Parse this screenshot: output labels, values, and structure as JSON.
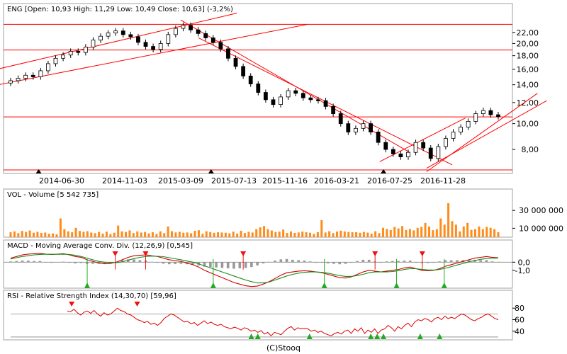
{
  "footer": "(C)Stooq",
  "colors": {
    "up": "#ffffff",
    "down": "#000000",
    "trend": "#ff0000",
    "volume": "#ff8c1a",
    "macd": "#d00000",
    "signal": "#1a8c1a",
    "histogram": "#999999",
    "rsi": "#e00000",
    "marker_green": "#22aa22",
    "marker_red": "#ee1111"
  },
  "chart_data": [
    {
      "type": "candlestick",
      "header": "ENG [Open: 10,93  High: 11,29  Low: 10,49  Close: 10,63] (-3,2%)",
      "x_tick_labels": [
        "2014-06-30",
        "2014-11-03",
        "2015-03-09",
        "2015-07-13",
        "2015-11-16",
        "2016-03-21",
        "2016-07-25",
        "2016-11-28"
      ],
      "y_tick_labels": [
        "22,00",
        "20,00",
        "18,00",
        "16,00",
        "14,00",
        "12,00",
        "10,00",
        "8,00"
      ],
      "y_ticks": [
        22,
        20,
        18,
        16,
        14,
        12,
        10,
        8
      ],
      "y_scale": "log",
      "ylim": [
        6.5,
        25
      ],
      "horizontal_lines": [
        23.6,
        18.9,
        10.6,
        6.7
      ],
      "close_series": [
        14.5,
        14.8,
        15.2,
        15.0,
        15.8,
        16.8,
        17.6,
        18.1,
        18.7,
        18.5,
        19.4,
        20.6,
        21.3,
        21.9,
        22.3,
        21.6,
        21.2,
        20.2,
        19.5,
        19.0,
        20.0,
        21.6,
        22.8,
        23.4,
        22.5,
        21.8,
        21.0,
        20.2,
        19.1,
        17.6,
        16.4,
        15.1,
        14.1,
        13.1,
        12.3,
        11.8,
        12.6,
        13.3,
        13.0,
        12.5,
        12.3,
        12.2,
        11.6,
        10.9,
        10.0,
        9.3,
        9.6,
        10.0,
        9.3,
        8.5,
        8.0,
        7.7,
        7.5,
        7.8,
        8.5,
        8.1,
        7.4,
        8.2,
        8.8,
        9.3,
        9.7,
        10.2,
        10.9,
        11.2,
        10.8,
        10.63
      ],
      "markers_up_x_dates": [
        "2014-05-15",
        "2015-05-20",
        "2016-07-10"
      ]
    },
    {
      "type": "bar",
      "header": "VOL - Volume [5 542 735]",
      "y_tick_labels": [
        "30 000 000",
        "10 000 000"
      ],
      "y_ticks": [
        30000000,
        10000000
      ],
      "ylim": [
        0,
        42000000
      ],
      "values": [
        5500000,
        6500000,
        4500000,
        7000000,
        5800000,
        7500000,
        5000000,
        6000000,
        4800000,
        5200000,
        3800000,
        4200000,
        3200000,
        21000000,
        9000000,
        6500000,
        5500000,
        10500000,
        7000000,
        6000000,
        6800000,
        5200000,
        4500000,
        5800000,
        4000000,
        6200000,
        3500000,
        5000000,
        13000000,
        6500000,
        5800000,
        7600000,
        4600000,
        6500000,
        5200000,
        5900000,
        4200000,
        5500000,
        3700000,
        6600000,
        4500000,
        12000000,
        6700000,
        5300000,
        6000000,
        5000000,
        5300000,
        4400000,
        7100000,
        7800000,
        3800000,
        6600000,
        5800000,
        4900000,
        5500000,
        5200000,
        5000000,
        4300000,
        6200000,
        4000000,
        7200000,
        4600000,
        5900000,
        5200000,
        9000000,
        11000000,
        12500000,
        9000000,
        7500000,
        5800000,
        6200000,
        8500000,
        4700000,
        6500000,
        4800000,
        5300000,
        6200000,
        5500000,
        5000000,
        3600000,
        5600000,
        19000000,
        5200000,
        6700000,
        4500000,
        6300000,
        7300000,
        6400000,
        5800000,
        5500000,
        5600000,
        4900000,
        5900000,
        5100000,
        3900000,
        6700000,
        4500000,
        10500000,
        9200000,
        8000000,
        11500000,
        9800000,
        12500000,
        8000000,
        9200000,
        7600000,
        10500000,
        11500000,
        16000000,
        12000000,
        7800000,
        9000000,
        21000000,
        14000000,
        38000000,
        18000000,
        14000000,
        6500000,
        12000000,
        16000000,
        8200000,
        9000000,
        12000000,
        9000000,
        11500000,
        10500000,
        9000000,
        5542735
      ]
    },
    {
      "type": "line",
      "header": "MACD - Moving Average Conv. Div. (12,26,9) [0,545]",
      "y_tick_labels": [
        "0,0",
        "-1,0"
      ],
      "y_ticks": [
        0,
        -1
      ],
      "ylim": [
        -3.2,
        1.6
      ],
      "series": [
        {
          "values": [
            0.5,
            0.7,
            0.9,
            1.0,
            1.05,
            1.1,
            1.0,
            0.95,
            1.0,
            1.05,
            0.9,
            0.7,
            0.6,
            0.3,
            0.1,
            -0.1,
            -0.2,
            -0.15,
            0.0,
            0.3,
            0.6,
            0.8,
            0.85,
            0.9,
            0.8,
            0.7,
            0.5,
            0.3,
            0.2,
            0.1,
            -0.1,
            -0.3,
            -0.6,
            -1.0,
            -1.3,
            -1.6,
            -1.9,
            -2.2,
            -2.5,
            -2.7,
            -2.9,
            -3.0,
            -2.95,
            -2.7,
            -2.4,
            -2.0,
            -1.6,
            -1.3,
            -1.2,
            -1.1,
            -1.05,
            -1.1,
            -1.2,
            -1.3,
            -1.5,
            -1.7,
            -1.9,
            -1.95,
            -1.8,
            -1.5,
            -1.2,
            -1.0,
            -1.1,
            -1.2,
            -1.1,
            -1.0,
            -0.9,
            -0.7,
            -0.6,
            -0.8,
            -1.0,
            -1.05,
            -1.0,
            -0.8,
            -0.5,
            -0.3,
            -0.1,
            0.1,
            0.3,
            0.5,
            0.6,
            0.7,
            0.6,
            0.545
          ]
        },
        {
          "values": [
            0.4,
            0.55,
            0.7,
            0.8,
            0.9,
            0.95,
            0.98,
            0.97,
            0.97,
            0.98,
            0.95,
            0.85,
            0.7,
            0.5,
            0.3,
            0.1,
            0.0,
            -0.05,
            -0.05,
            0.05,
            0.25,
            0.45,
            0.6,
            0.7,
            0.75,
            0.73,
            0.68,
            0.55,
            0.42,
            0.3,
            0.15,
            0.0,
            -0.2,
            -0.45,
            -0.7,
            -0.95,
            -1.2,
            -1.45,
            -1.7,
            -1.95,
            -2.2,
            -2.4,
            -2.55,
            -2.55,
            -2.45,
            -2.2,
            -1.95,
            -1.7,
            -1.5,
            -1.35,
            -1.25,
            -1.2,
            -1.2,
            -1.25,
            -1.35,
            -1.5,
            -1.65,
            -1.75,
            -1.75,
            -1.65,
            -1.5,
            -1.3,
            -1.2,
            -1.2,
            -1.2,
            -1.15,
            -1.05,
            -0.9,
            -0.8,
            -0.8,
            -0.9,
            -0.95,
            -0.97,
            -0.9,
            -0.75,
            -0.55,
            -0.35,
            -0.15,
            0.05,
            0.2,
            0.35,
            0.45,
            0.5,
            0.5
          ]
        }
      ],
      "histogram": [
        0.1,
        0.15,
        0.2,
        0.2,
        0.15,
        0.15,
        0.02,
        -0.02,
        0.03,
        0.07,
        -0.05,
        -0.15,
        -0.1,
        -0.2,
        -0.2,
        -0.2,
        -0.2,
        -0.1,
        0.05,
        0.25,
        0.35,
        0.35,
        0.25,
        0.2,
        0.05,
        -0.03,
        -0.18,
        -0.25,
        -0.22,
        -0.2,
        -0.25,
        -0.3,
        -0.4,
        -0.55,
        -0.6,
        -0.65,
        -0.7,
        -0.75,
        -0.8,
        -0.75,
        -0.7,
        -0.6,
        -0.4,
        -0.15,
        0.05,
        0.2,
        0.35,
        0.4,
        0.3,
        0.25,
        0.2,
        0.1,
        0.0,
        -0.05,
        -0.15,
        -0.2,
        -0.25,
        -0.2,
        -0.05,
        0.15,
        0.3,
        0.3,
        0.1,
        0.0,
        0.1,
        0.15,
        0.15,
        0.2,
        0.2,
        0.0,
        -0.1,
        -0.1,
        -0.03,
        0.1,
        0.25,
        0.25,
        0.25,
        0.25,
        0.25,
        0.3,
        0.25,
        0.25,
        0.1,
        0.045
      ]
    },
    {
      "type": "line",
      "header": "RSI - Relative Strength Index (14,30,70) [59,96]",
      "y_tick_labels": [
        "80",
        "60",
        "40"
      ],
      "y_ticks": [
        80,
        60,
        40
      ],
      "ylim": [
        25,
        95
      ],
      "reference_lines": [
        70,
        30
      ],
      "values": [
        75,
        74,
        78,
        72,
        68,
        73,
        75,
        71,
        76,
        70,
        66,
        72,
        68,
        70,
        75,
        80,
        76,
        74,
        70,
        68,
        64,
        60,
        58,
        55,
        57,
        52,
        54,
        50,
        55,
        62,
        66,
        70,
        68,
        64,
        60,
        56,
        57,
        53,
        55,
        50,
        54,
        58,
        53,
        56,
        52,
        50,
        52,
        48,
        46,
        44,
        47,
        45,
        42,
        46,
        44,
        40,
        42,
        38,
        41,
        35,
        38,
        32,
        38,
        36,
        34,
        40,
        45,
        48,
        42,
        46,
        44,
        45,
        44,
        40,
        42,
        38,
        40,
        36,
        34,
        32,
        36,
        38,
        35,
        40,
        42,
        36,
        44,
        40,
        46,
        36,
        42,
        38,
        44,
        36,
        42,
        44,
        50,
        46,
        40,
        48,
        44,
        50,
        54,
        48,
        56,
        60,
        58,
        62,
        60,
        56,
        62,
        64,
        60,
        66,
        62,
        64,
        62,
        66,
        70,
        68,
        64,
        60,
        58,
        62,
        64,
        68,
        70,
        66,
        62,
        59.96
      ]
    }
  ]
}
